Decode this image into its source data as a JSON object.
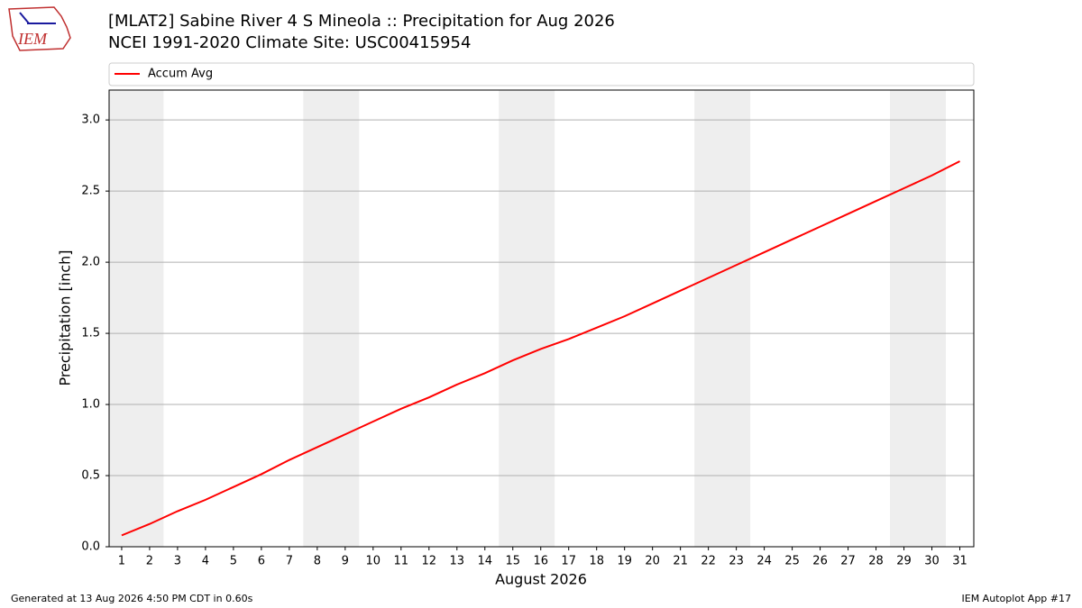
{
  "logo": "IEM",
  "footer_left": "Generated at 13 Aug 2026 4:50 PM CDT in 0.60s",
  "footer_right": "IEM Autoplot App #17",
  "chart_data": {
    "type": "line",
    "title": "[MLAT2] Sabine River 4 S Mineola :: Precipitation for Aug 2026",
    "subtitle": "NCEI 1991-2020 Climate Site: USC00415954",
    "x_label": "August 2026",
    "y_label": "Precipitation [inch]",
    "x": [
      1,
      2,
      3,
      4,
      5,
      6,
      7,
      8,
      9,
      10,
      11,
      12,
      13,
      14,
      15,
      16,
      17,
      18,
      19,
      20,
      21,
      22,
      23,
      24,
      25,
      26,
      27,
      28,
      29,
      30,
      31
    ],
    "series": [
      {
        "name": "Accum Avg",
        "color": "#ff0000",
        "values": [
          0.08,
          0.16,
          0.25,
          0.33,
          0.42,
          0.51,
          0.61,
          0.7,
          0.79,
          0.88,
          0.97,
          1.05,
          1.14,
          1.22,
          1.31,
          1.39,
          1.46,
          1.54,
          1.62,
          1.71,
          1.8,
          1.89,
          1.98,
          2.07,
          2.16,
          2.25,
          2.34,
          2.43,
          2.52,
          2.61,
          2.71
        ]
      }
    ],
    "xlim": [
      0.55,
      31.5
    ],
    "xticks": [
      1,
      2,
      3,
      4,
      5,
      6,
      7,
      8,
      9,
      10,
      11,
      12,
      13,
      14,
      15,
      16,
      17,
      18,
      19,
      20,
      21,
      22,
      23,
      24,
      25,
      26,
      27,
      28,
      29,
      30,
      31
    ],
    "ylim": [
      0,
      3.21
    ],
    "yticks": [
      {
        "value": 0,
        "label": "0.0"
      },
      0.5,
      {
        "value": 1,
        "label": "1.0"
      },
      1.5,
      {
        "value": 2,
        "label": "2.0"
      },
      2.5,
      {
        "value": 3,
        "label": "3.0"
      }
    ],
    "grid": true,
    "shaded_spans": [
      [
        0.5,
        2.5
      ],
      [
        7.5,
        9.5
      ],
      [
        14.5,
        16.5
      ],
      [
        21.5,
        23.5
      ],
      [
        28.5,
        30.5
      ]
    ],
    "shade_color": "#eeeeee",
    "legend": "top"
  }
}
